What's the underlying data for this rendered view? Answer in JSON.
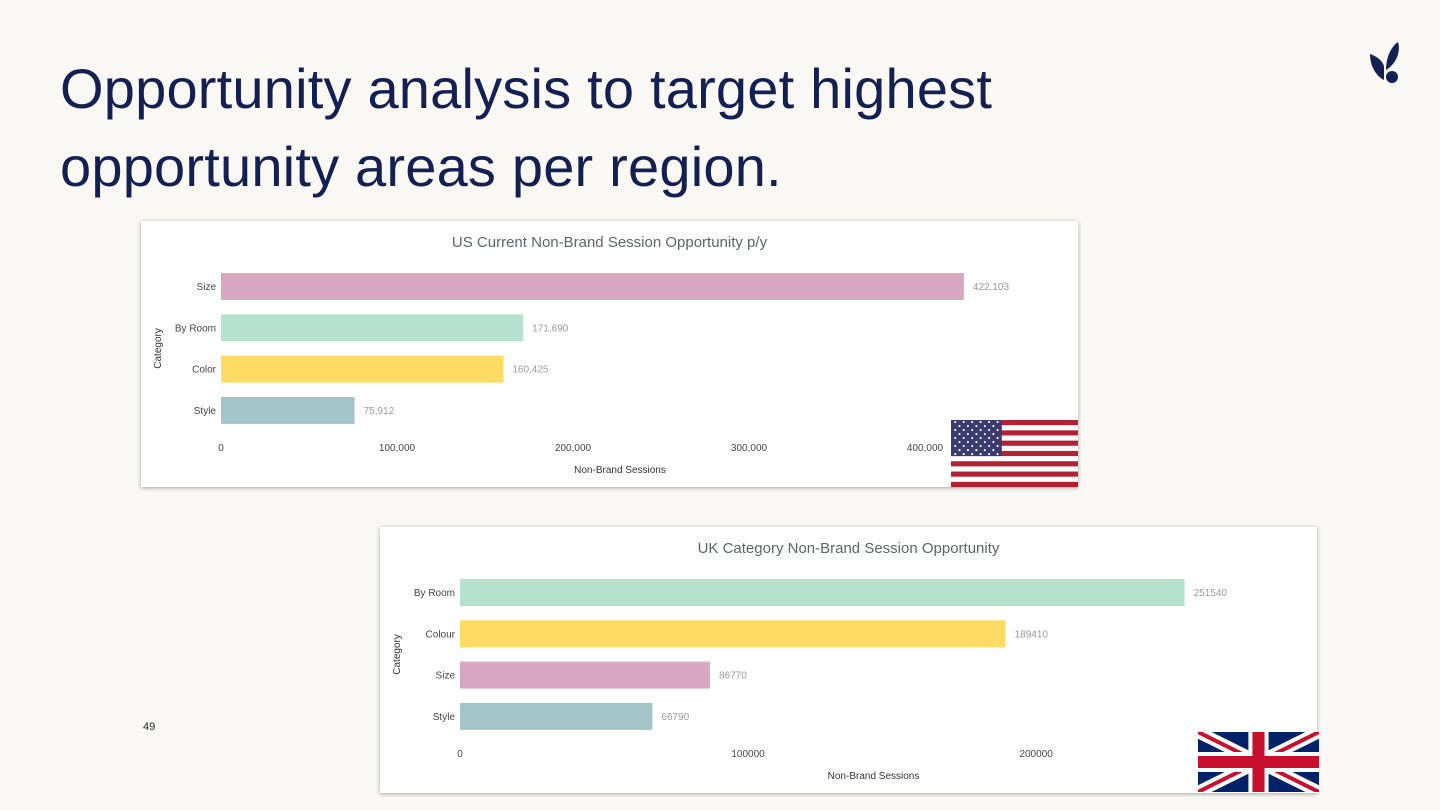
{
  "slide": {
    "title": "Opportunity analysis to target highest opportunity areas per region.",
    "page_number": "49"
  },
  "colors": {
    "title": "#141f52",
    "Size": "#d8a8c2",
    "By Room": "#b7e2cf",
    "Color": "#fedc64",
    "Colour": "#fedc64",
    "Style": "#a3c4c9"
  },
  "icons": {
    "logo": "leaf-logo-icon",
    "us_flag": "us-flag-icon",
    "uk_flag": "uk-flag-icon"
  },
  "chart_data": [
    {
      "id": "us",
      "type": "bar",
      "orientation": "horizontal",
      "title": "US Current Non-Brand Session Opportunity p/y",
      "xlabel": "Non-Brand Sessions",
      "ylabel": "Category",
      "categories": [
        "Size",
        "By Room",
        "Color",
        "Style"
      ],
      "values": [
        422103,
        171690,
        160425,
        75912
      ],
      "value_labels": [
        "422,103",
        "171,690",
        "160,425",
        "75,912"
      ],
      "xlim": [
        0,
        450000
      ],
      "xticks": [
        0,
        100000,
        200000,
        300000,
        400000
      ],
      "xtick_labels": [
        "0",
        "100,000",
        "200,000",
        "300,000",
        "400,000"
      ],
      "grid": false,
      "legend": "none"
    },
    {
      "id": "uk",
      "type": "bar",
      "orientation": "horizontal",
      "title": "UK Category Non-Brand Session Opportunity",
      "xlabel": "Non-Brand Sessions",
      "ylabel": "Category",
      "categories": [
        "By Room",
        "Colour",
        "Size",
        "Style"
      ],
      "values": [
        251540,
        189410,
        86770,
        66790
      ],
      "value_labels": [
        "251540",
        "189410",
        "86770",
        "66790"
      ],
      "xlim": [
        0,
        285000
      ],
      "xticks": [
        0,
        100000,
        200000
      ],
      "xtick_labels": [
        "0",
        "100000",
        "200000"
      ],
      "grid": false,
      "legend": "none"
    }
  ]
}
